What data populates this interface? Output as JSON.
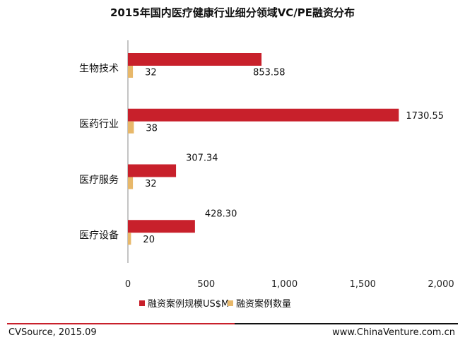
{
  "chart_data": {
    "type": "bar",
    "orientation": "horizontal",
    "title": "2015年国内医疗健康行业细分领域VC/PE融资分布",
    "categories": [
      "生物技术",
      "医药行业",
      "医疗服务",
      "医疗设备"
    ],
    "series": [
      {
        "name": "融资案例规模US$M",
        "color": "#c8202b",
        "values": [
          853.58,
          1730.55,
          307.34,
          428.3
        ],
        "labels": [
          "853.58",
          "1730.55",
          "307.34",
          "428.30"
        ]
      },
      {
        "name": "融资案例数量",
        "color": "#e8b86a",
        "values": [
          32,
          38,
          32,
          20
        ],
        "labels": [
          "32",
          "38",
          "32",
          "20"
        ]
      }
    ],
    "xlim": [
      0,
      2000
    ],
    "xticks": [
      0,
      500,
      1000,
      1500,
      2000
    ],
    "xtick_labels": [
      "0",
      "500",
      "1,000",
      "1,500",
      "2,000"
    ],
    "grid": false,
    "legend_position": "bottom"
  },
  "footer": {
    "source": "CVSource, 2015.09",
    "website": "www.ChinaVenture.com.cn"
  }
}
